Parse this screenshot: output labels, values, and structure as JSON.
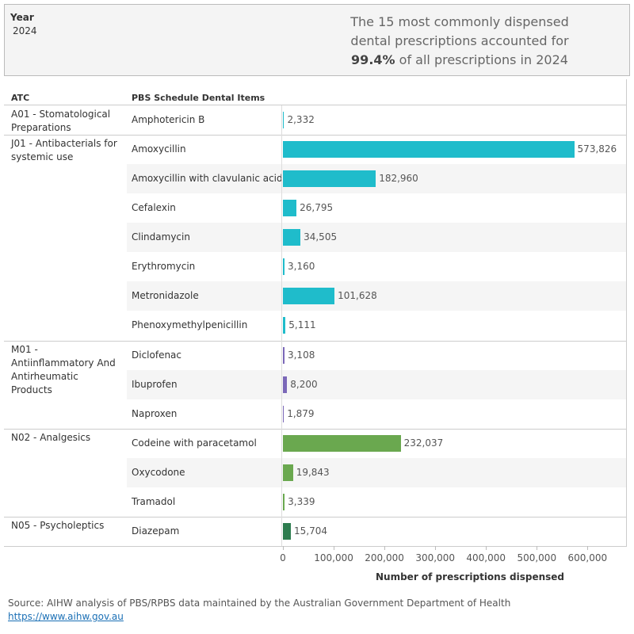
{
  "chart_data": {
    "type": "bar",
    "orientation": "horizontal",
    "filter_label": "Year",
    "filter_value": "2024",
    "headline_before": "The 15 most commonly dispensed dental prescriptions accounted for",
    "headline_bold": "99.4%",
    "headline_after": "of all prescriptions in 2024",
    "column_headers": [
      "ATC",
      "PBS Schedule Dental Items"
    ],
    "groups": [
      {
        "name": "A01 - Stomatological Preparations",
        "color": "#1fbccb",
        "items": [
          "Amphotericin B"
        ],
        "values": [
          2332
        ],
        "value_labels": [
          "2,332"
        ]
      },
      {
        "name": "J01 - Antibacterials for systemic use",
        "color": "#1fbccb",
        "items": [
          "Amoxycillin",
          "Amoxycillin with clavulanic acid",
          "Cefalexin",
          "Clindamycin",
          "Erythromycin",
          "Metronidazole",
          "Phenoxymethylpenicillin"
        ],
        "values": [
          573826,
          182960,
          26795,
          34505,
          3160,
          101628,
          5111
        ],
        "value_labels": [
          "573,826",
          "182,960",
          "26,795",
          "34,505",
          "3,160",
          "101,628",
          "5,111"
        ]
      },
      {
        "name": "M01 - Antiinflammatory And Antirheumatic Products",
        "color": "#7b68b8",
        "items": [
          "Diclofenac",
          "Ibuprofen",
          "Naproxen"
        ],
        "values": [
          3108,
          8200,
          1879
        ],
        "value_labels": [
          "3,108",
          "8,200",
          "1,879"
        ]
      },
      {
        "name": "N02 - Analgesics",
        "color": "#6aa84f",
        "items": [
          "Codeine with paracetamol",
          "Oxycodone",
          "Tramadol"
        ],
        "values": [
          232037,
          19843,
          3339
        ],
        "value_labels": [
          "232,037",
          "19,843",
          "3,339"
        ]
      },
      {
        "name": "N05 - Psycholeptics",
        "color": "#2e7d4f",
        "items": [
          "Diazepam"
        ],
        "values": [
          15704
        ],
        "value_labels": [
          "15,704"
        ]
      }
    ],
    "xlim": [
      0,
      676000
    ],
    "xticks": [
      0,
      {
        "value": 100000,
        "label": "100,000"
      },
      {
        "value": 200000,
        "label": "200,000"
      },
      {
        "value": 300000,
        "label": "300,000"
      },
      {
        "value": 400000,
        "label": "400,000"
      },
      {
        "value": 500000,
        "label": "500,000"
      },
      {
        "value": 600000,
        "label": "600,000"
      }
    ],
    "x_label": "Number of prescriptions dispensed",
    "source": "Source: AIHW analysis of PBS/RPBS data maintained by the Australian Government Department of Health",
    "link": "https://www.aihw.gov.au"
  }
}
